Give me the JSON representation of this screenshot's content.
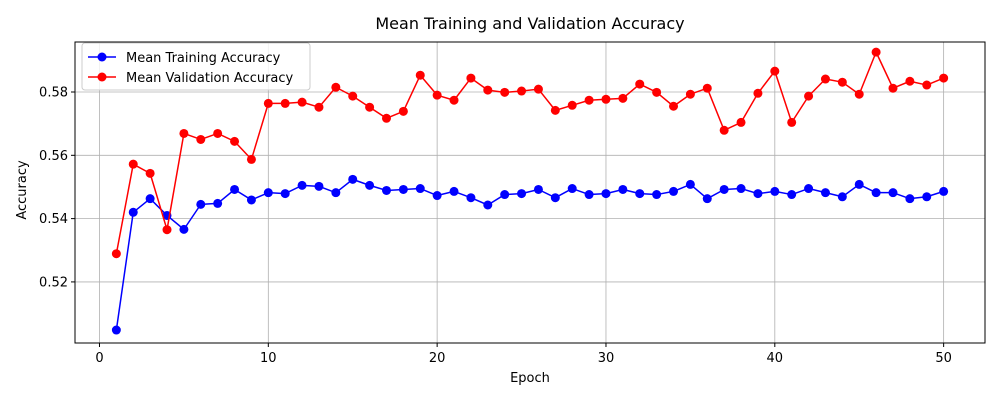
{
  "chart_data": {
    "type": "line",
    "title": "Mean Training and Validation Accuracy",
    "xlabel": "Epoch",
    "ylabel": "Accuracy",
    "xlim": [
      -1.45,
      52.45
    ],
    "ylim": [
      0.5007,
      0.5958
    ],
    "xticks": [
      0,
      10,
      20,
      30,
      40,
      50
    ],
    "xtick_labels": [
      "0",
      "10",
      "20",
      "30",
      "40",
      "50"
    ],
    "yticks": [
      0.52,
      0.54,
      0.56,
      0.58
    ],
    "ytick_labels": [
      "0.52",
      "0.54",
      "0.56",
      "0.58"
    ],
    "grid": true,
    "legend_position": "upper-left",
    "x": [
      1,
      2,
      3,
      4,
      5,
      6,
      7,
      8,
      9,
      10,
      11,
      12,
      13,
      14,
      15,
      16,
      17,
      18,
      19,
      20,
      21,
      22,
      23,
      24,
      25,
      26,
      27,
      28,
      29,
      30,
      31,
      32,
      33,
      34,
      35,
      36,
      37,
      38,
      39,
      40,
      41,
      42,
      43,
      44,
      45,
      46,
      47,
      48,
      49,
      50
    ],
    "series": [
      {
        "name": "Mean Training Accuracy",
        "color": "#0000ff",
        "values": [
          0.5048,
          0.542,
          0.5463,
          0.541,
          0.5366,
          0.5445,
          0.5448,
          0.5492,
          0.5459,
          0.5482,
          0.5479,
          0.5505,
          0.5502,
          0.5482,
          0.5524,
          0.5505,
          0.5489,
          0.5492,
          0.5495,
          0.5473,
          0.5486,
          0.5466,
          0.5443,
          0.5476,
          0.5479,
          0.5492,
          0.5466,
          0.5495,
          0.5476,
          0.5479,
          0.5492,
          0.5479,
          0.5476,
          0.5486,
          0.5508,
          0.5463,
          0.5492,
          0.5495,
          0.5479,
          0.5486,
          0.5476,
          0.5495,
          0.5482,
          0.5469,
          0.5508,
          0.5482,
          0.5482,
          0.5463,
          0.5469,
          0.5486
        ]
      },
      {
        "name": "Mean Validation Accuracy",
        "color": "#ff0000",
        "values": [
          0.5289,
          0.5572,
          0.5543,
          0.5365,
          0.5669,
          0.565,
          0.5669,
          0.5644,
          0.5587,
          0.5764,
          0.5764,
          0.5768,
          0.5752,
          0.5815,
          0.5787,
          0.5752,
          0.5717,
          0.5739,
          0.5853,
          0.579,
          0.5774,
          0.5844,
          0.5806,
          0.5799,
          0.5803,
          0.5809,
          0.5742,
          0.5758,
          0.5774,
          0.5777,
          0.578,
          0.5825,
          0.5799,
          0.5755,
          0.5793,
          0.5812,
          0.5679,
          0.5704,
          0.5796,
          0.5866,
          0.5704,
          0.5787,
          0.5841,
          0.5831,
          0.5793,
          0.5926,
          0.5812,
          0.5834,
          0.5822,
          0.5844
        ]
      }
    ]
  }
}
